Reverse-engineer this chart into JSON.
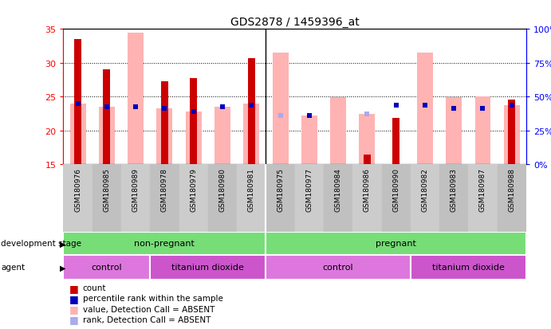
{
  "title": "GDS2878 / 1459396_at",
  "samples": [
    "GSM180976",
    "GSM180985",
    "GSM180989",
    "GSM180978",
    "GSM180979",
    "GSM180980",
    "GSM180981",
    "GSM180975",
    "GSM180977",
    "GSM180984",
    "GSM180986",
    "GSM180990",
    "GSM180982",
    "GSM180983",
    "GSM180987",
    "GSM180988"
  ],
  "count_values": [
    33.5,
    29.0,
    null,
    27.2,
    27.7,
    null,
    30.7,
    null,
    null,
    null,
    16.4,
    21.8,
    null,
    null,
    null,
    24.5
  ],
  "count_absent": [
    false,
    false,
    false,
    false,
    false,
    false,
    false,
    false,
    false,
    false,
    false,
    false,
    false,
    false,
    false,
    false
  ],
  "pink_bar_top": [
    24.0,
    23.5,
    34.5,
    23.3,
    22.8,
    23.5,
    24.0,
    31.5,
    22.2,
    24.9,
    22.4,
    null,
    31.5,
    24.9,
    25.0,
    23.7
  ],
  "blue_dot_y": [
    24.0,
    23.5,
    23.5,
    23.3,
    22.8,
    23.5,
    23.7,
    null,
    22.2,
    null,
    null,
    23.7,
    23.7,
    23.3,
    23.3,
    23.7
  ],
  "blue_dot_dark": [
    true,
    true,
    true,
    true,
    true,
    true,
    true,
    false,
    true,
    false,
    false,
    true,
    true,
    true,
    true,
    true
  ],
  "light_blue_y": [
    null,
    null,
    null,
    null,
    null,
    null,
    null,
    22.2,
    null,
    null,
    22.4,
    null,
    null,
    null,
    null,
    null
  ],
  "ylim_left": [
    15,
    35
  ],
  "ylim_right": [
    0,
    100
  ],
  "yticks_left": [
    15,
    20,
    25,
    30,
    35
  ],
  "yticks_right": [
    0,
    25,
    50,
    75,
    100
  ],
  "count_color": "#cc0000",
  "pink_bar_color": "#ffb3b3",
  "pink_bar_narrow_color": "#ff9999",
  "blue_dot_color": "#0000bb",
  "light_blue_color": "#aaaaee",
  "dev_groups": [
    {
      "label": "non-pregnant",
      "start": 0,
      "end": 6,
      "color": "#77dd77"
    },
    {
      "label": "pregnant",
      "start": 7,
      "end": 15,
      "color": "#77dd77"
    }
  ],
  "agent_groups": [
    {
      "label": "control",
      "start": 0,
      "end": 2,
      "color": "#dd77dd"
    },
    {
      "label": "titanium dioxide",
      "start": 3,
      "end": 6,
      "color": "#cc55cc"
    },
    {
      "label": "control",
      "start": 7,
      "end": 11,
      "color": "#dd77dd"
    },
    {
      "label": "titanium dioxide",
      "start": 12,
      "end": 15,
      "color": "#cc55cc"
    }
  ],
  "legend_items": [
    {
      "label": "count",
      "color": "#cc0000"
    },
    {
      "label": "percentile rank within the sample",
      "color": "#0000bb"
    },
    {
      "label": "value, Detection Call = ABSENT",
      "color": "#ffb3b3"
    },
    {
      "label": "rank, Detection Call = ABSENT",
      "color": "#aaaaee"
    }
  ]
}
